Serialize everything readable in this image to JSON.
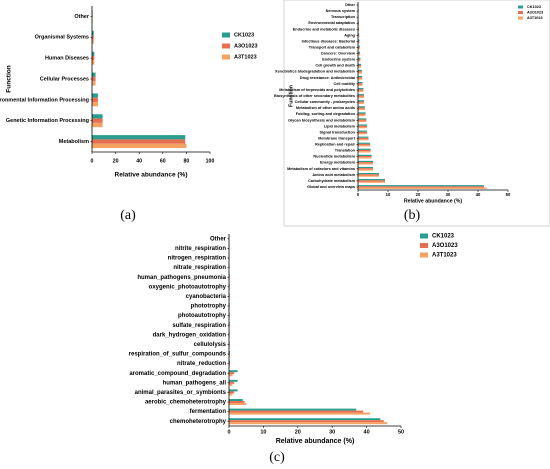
{
  "colors": {
    "CK1023": "#2a9d8f",
    "A3O1023": "#e76f51",
    "A3T1023": "#f4a261",
    "axis": "#000000"
  },
  "chart_data": [
    {
      "type": "bar",
      "panel_label": "(a)",
      "orientation": "horizontal",
      "xlabel": "Relative abundance (%)",
      "ylabel": "Function",
      "xlim": [
        0,
        100
      ],
      "xticks": [
        "0",
        "20",
        "40",
        "60",
        "80",
        "100"
      ],
      "legend_position": "right",
      "categories": [
        "Metabolism",
        "Genetic Information Processing",
        "Environmental Information Processing",
        "Cellular Processes",
        "Human Diseases",
        "Organismal Systems",
        "Other"
      ],
      "series": [
        {
          "name": "CK1023",
          "values": [
            79,
            9,
            5,
            3,
            2,
            1.5,
            0.5
          ]
        },
        {
          "name": "A3O1023",
          "values": [
            79,
            9,
            5,
            3,
            2,
            1.5,
            0.5
          ]
        },
        {
          "name": "A3T1023",
          "values": [
            80,
            9,
            5,
            3,
            2,
            1.5,
            0.5
          ]
        }
      ]
    },
    {
      "type": "bar",
      "panel_label": "(b)",
      "orientation": "horizontal",
      "xlabel": "Relative abundance (%)",
      "ylabel": "Function",
      "xlim": [
        0,
        50
      ],
      "xticks": [
        "0",
        "10",
        "20",
        "30",
        "40",
        "50"
      ],
      "legend_position": "top-left",
      "categories": [
        "Global and overview maps",
        "Carbohydrate metabolism",
        "Amino acid metabolism",
        "Metabolism of cofactors and vitamins",
        "Energy metabolism",
        "Nucleotide metabolism",
        "Translation",
        "Replication and repair",
        "Membrane transport",
        "Signal transduction",
        "Lipid metabolism",
        "Glycan biosynthesis and metabolism",
        "Folding, sorting and degradation",
        "Metabolism of other amino acids",
        "Cellular community - prokaryotes",
        "Biosynthesis of other secondary metabolites",
        "Metabolism of terpenoids and polyketides",
        "Cell motility",
        "Drug resistance: Antimicrobial",
        "Xenobiotics biodegradation and metabolism",
        "Cell growth and death",
        "Endocrine system",
        "Cancers: Overview",
        "Transport and catabolism",
        "Infectious diseases: Bacterial",
        "Aging",
        "Endocrine and metabolic diseases",
        "Environmental adaptation",
        "Transcription",
        "Nervous system",
        "Other"
      ],
      "series": [
        {
          "name": "CK1023",
          "values": [
            42,
            9,
            7,
            5,
            5,
            4.5,
            4.2,
            4,
            3.5,
            3,
            3,
            2.8,
            2.5,
            2.3,
            2,
            2,
            1.8,
            1.5,
            1.4,
            1.3,
            1,
            0.8,
            0.7,
            0.6,
            0.5,
            0.4,
            0.3,
            0.3,
            0.2,
            0.2,
            0.1
          ]
        },
        {
          "name": "A3O1023",
          "values": [
            42,
            9,
            7,
            5,
            5,
            4.5,
            4.2,
            4,
            3.5,
            3,
            3,
            2.8,
            2.5,
            2.3,
            2,
            2,
            1.8,
            1.5,
            1.4,
            1.3,
            1,
            0.8,
            0.7,
            0.6,
            0.5,
            0.4,
            0.3,
            0.3,
            0.2,
            0.2,
            0.1
          ]
        },
        {
          "name": "A3T1023",
          "values": [
            43,
            9,
            7,
            5,
            5,
            4.5,
            4.2,
            4,
            3.5,
            3,
            3,
            2.8,
            2.5,
            2.3,
            2,
            2,
            1.8,
            1.5,
            1.4,
            1.3,
            1,
            0.8,
            0.7,
            0.6,
            0.5,
            0.4,
            0.3,
            0.3,
            0.2,
            0.2,
            0.1
          ]
        }
      ]
    },
    {
      "type": "bar",
      "panel_label": "(c)",
      "orientation": "horizontal",
      "xlabel": "Relative abundance (%)",
      "ylabel": "",
      "xlim": [
        0,
        50
      ],
      "xticks": [
        "0",
        "10",
        "20",
        "30",
        "40",
        "50"
      ],
      "legend_position": "top-right",
      "categories": [
        "chemoheterotrophy",
        "fermentation",
        "aerobic_chemoheterotrophy",
        "animal_parasites_or_symbionts",
        "human_pathogens_all",
        "aromatic_compound_degradation",
        "nitrate_reduction",
        "respiration_of_sulfur_compounds",
        "cellulolysis",
        "dark_hydrogen_oxidation",
        "sulfate_respiration",
        "photoautotrophy",
        "phototrophy",
        "cyanobacteria",
        "oxygenic_photoautotrophy",
        "human_pathogens_pneumonia",
        "nitrate_respiration",
        "nitrogen_respiration",
        "nitrite_respiration",
        "Other"
      ],
      "series": [
        {
          "name": "CK1023",
          "values": [
            44,
            37,
            4,
            2.5,
            2.5,
            2.5,
            0.3,
            0.3,
            0.2,
            0.2,
            0.2,
            0.2,
            0.2,
            0.2,
            0.2,
            0.2,
            0.1,
            0.1,
            0.1,
            0.1
          ]
        },
        {
          "name": "A3O1023",
          "values": [
            45,
            39,
            4.5,
            1.5,
            1.5,
            1.5,
            0.3,
            0.3,
            0.2,
            0.2,
            0.2,
            0.2,
            0.2,
            0.2,
            0.2,
            0.2,
            0.1,
            0.1,
            0.1,
            0.1
          ]
        },
        {
          "name": "A3T1023",
          "values": [
            46,
            41,
            5,
            1,
            1,
            1,
            0.3,
            0.3,
            0.2,
            0.2,
            0.2,
            0.2,
            0.2,
            0.2,
            0.2,
            0.2,
            0.1,
            0.1,
            0.1,
            0.1
          ]
        }
      ]
    }
  ]
}
